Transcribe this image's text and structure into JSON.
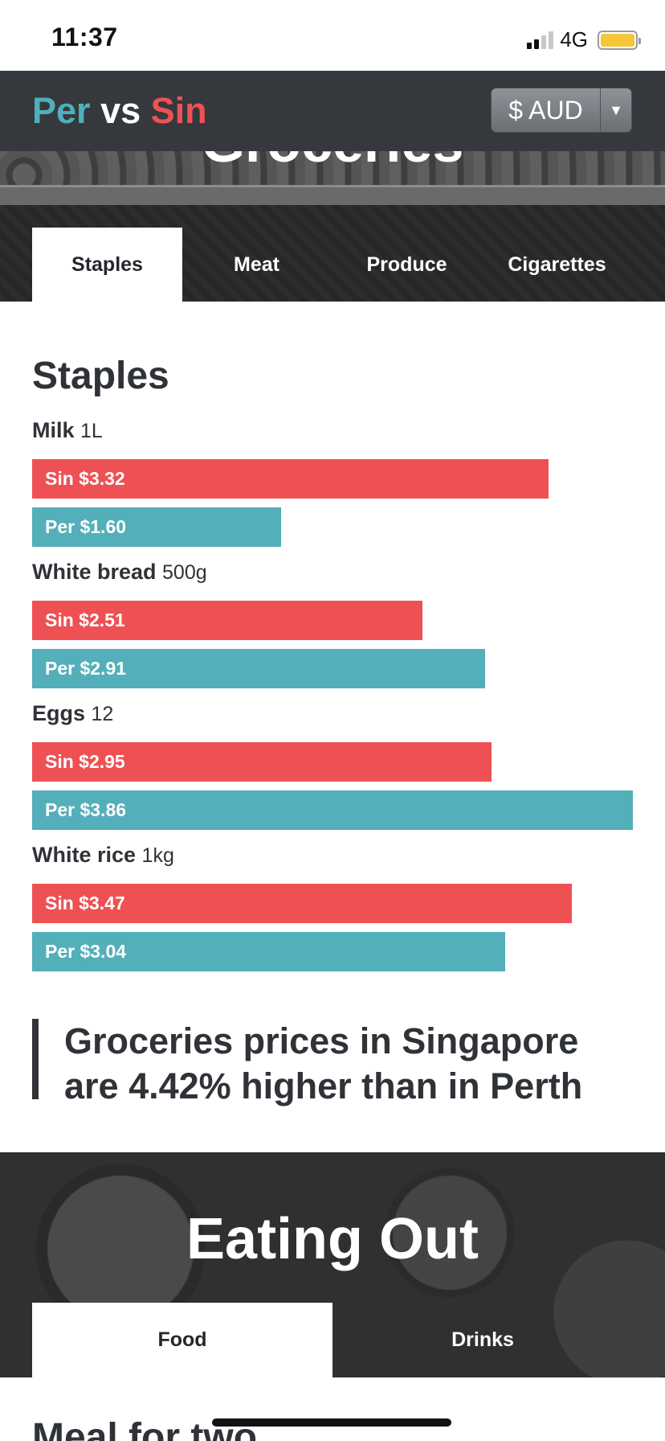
{
  "status": {
    "time": "11:37",
    "network": "4G"
  },
  "header": {
    "brand": {
      "per": "Per",
      "vs": "vs",
      "sin": "Sin"
    },
    "currency": "$ AUD"
  },
  "groceries": {
    "title": "Groceries",
    "tabs": [
      "Staples",
      "Meat",
      "Produce",
      "Cigarettes"
    ],
    "active_tab": "Staples",
    "section_title": "Staples",
    "items": [
      {
        "name": "Milk",
        "unit": "1L",
        "sin_label": "Sin $3.32",
        "per_label": "Per $1.60",
        "sin": 3.32,
        "per": 1.6
      },
      {
        "name": "White bread",
        "unit": "500g",
        "sin_label": "Sin $2.51",
        "per_label": "Per $2.91",
        "sin": 2.51,
        "per": 2.91
      },
      {
        "name": "Eggs",
        "unit": "12",
        "sin_label": "Sin $2.95",
        "per_label": "Per $3.86",
        "sin": 2.95,
        "per": 3.86
      },
      {
        "name": "White rice",
        "unit": "1kg",
        "sin_label": "Sin $3.47",
        "per_label": "Per $3.04",
        "sin": 3.47,
        "per": 3.04
      }
    ],
    "callout_line1": "Groceries prices in Singapore",
    "callout_line2": "are 4.42% higher than in Perth"
  },
  "eating_out": {
    "title": "Eating Out",
    "tabs": [
      "Food",
      "Drinks"
    ],
    "active_tab": "Food",
    "next_section_title": "Meal for two"
  },
  "colors": {
    "sin": "#ee5154",
    "per": "#53afba",
    "header_bg": "#35393d"
  },
  "icons": [
    "signal-icon",
    "battery-icon",
    "dropdown-caret-icon"
  ]
}
